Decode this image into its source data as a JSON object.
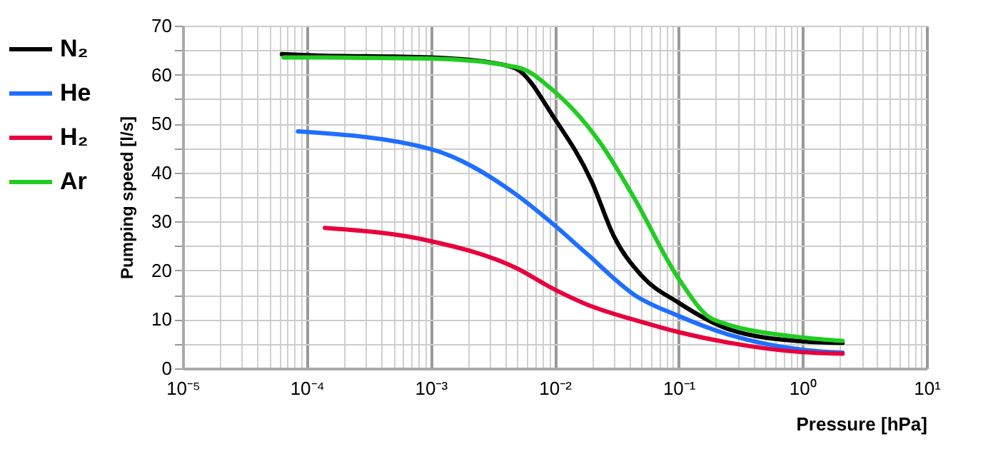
{
  "chart_data": {
    "type": "line",
    "xlabel": "Pressure [hPa]",
    "ylabel": "Pumping speed [l/s]",
    "log": "x",
    "xlim": [
      1e-05,
      10
    ],
    "ylim": [
      0,
      70
    ],
    "xticks": [
      {
        "value": 1e-05,
        "label": "10⁻⁵"
      },
      {
        "value": 2e-05,
        "label": null
      },
      {
        "value": 3e-05,
        "label": null
      },
      {
        "value": 4e-05,
        "label": null
      },
      {
        "value": 5e-05,
        "label": null
      },
      {
        "value": 6e-05,
        "label": null
      },
      {
        "value": 7e-05,
        "label": null
      },
      {
        "value": 8e-05,
        "label": null
      },
      {
        "value": 9e-05,
        "label": null
      },
      {
        "value": 0.0001,
        "label": "10⁻⁴"
      },
      {
        "value": 0.0002,
        "label": null
      },
      {
        "value": 0.0003,
        "label": null
      },
      {
        "value": 0.0004,
        "label": null
      },
      {
        "value": 0.0005,
        "label": null
      },
      {
        "value": 0.0006,
        "label": null
      },
      {
        "value": 0.0007,
        "label": null
      },
      {
        "value": 0.0008,
        "label": null
      },
      {
        "value": 0.0009,
        "label": null
      },
      {
        "value": 0.001,
        "label": "10⁻³"
      },
      {
        "value": 0.002,
        "label": null
      },
      {
        "value": 0.003,
        "label": null
      },
      {
        "value": 0.004,
        "label": null
      },
      {
        "value": 0.005,
        "label": null
      },
      {
        "value": 0.006,
        "label": null
      },
      {
        "value": 0.007,
        "label": null
      },
      {
        "value": 0.008,
        "label": null
      },
      {
        "value": 0.009,
        "label": null
      },
      {
        "value": 0.01,
        "label": "10⁻²"
      },
      {
        "value": 0.02,
        "label": null
      },
      {
        "value": 0.03,
        "label": null
      },
      {
        "value": 0.04,
        "label": null
      },
      {
        "value": 0.05,
        "label": null
      },
      {
        "value": 0.06,
        "label": null
      },
      {
        "value": 0.07,
        "label": null
      },
      {
        "value": 0.08,
        "label": null
      },
      {
        "value": 0.09,
        "label": null
      },
      {
        "value": 0.1,
        "label": "10⁻¹"
      },
      {
        "value": 0.2,
        "label": null
      },
      {
        "value": 0.3,
        "label": null
      },
      {
        "value": 0.4,
        "label": null
      },
      {
        "value": 0.5,
        "label": null
      },
      {
        "value": 0.6,
        "label": null
      },
      {
        "value": 0.7,
        "label": null
      },
      {
        "value": 0.8,
        "label": null
      },
      {
        "value": 0.9,
        "label": null
      },
      {
        "value": 1,
        "label": "10⁰"
      },
      {
        "value": 2,
        "label": null
      },
      {
        "value": 3,
        "label": null
      },
      {
        "value": 4,
        "label": null
      },
      {
        "value": 5,
        "label": null
      },
      {
        "value": 6,
        "label": null
      },
      {
        "value": 7,
        "label": null
      },
      {
        "value": 8,
        "label": null
      },
      {
        "value": 9,
        "label": null
      },
      {
        "value": 10,
        "label": "10¹"
      }
    ],
    "yticks": [
      0,
      {
        "value": 5,
        "label": null
      },
      10,
      {
        "value": 15,
        "label": null
      },
      20,
      {
        "value": 25,
        "label": null
      },
      30,
      {
        "value": 35,
        "label": null
      },
      40,
      {
        "value": 45,
        "label": null
      },
      50,
      {
        "value": 55,
        "label": null
      },
      60,
      {
        "value": 65,
        "label": null
      },
      70
    ],
    "grid": true,
    "legend": "left",
    "line_style": "solid",
    "marker": "none",
    "series": [
      {
        "name": "N₂",
        "color": "#000000",
        "x": [
          6.3e-05,
          0.0001,
          0.001,
          0.003,
          0.0049,
          0.01,
          0.02,
          0.03,
          0.05,
          0.1,
          0.26,
          1,
          2.1
        ],
        "values": [
          64.2,
          64,
          63.5,
          62.5,
          61.2,
          51,
          38,
          27,
          19,
          13.4,
          7.9,
          5.5,
          5.2
        ]
      },
      {
        "name": "He",
        "color": "#1f6fff",
        "x": [
          8.5e-05,
          0.001,
          0.0049,
          0.01,
          0.018,
          0.044,
          0.1,
          0.26,
          1,
          2.1
        ],
        "values": [
          48.4,
          44.8,
          35.5,
          29.2,
          23.5,
          15,
          10.7,
          6.8,
          3.8,
          3.2
        ]
      },
      {
        "name": "H₂",
        "color": "#e8003c",
        "x": [
          0.00014,
          0.001,
          0.0049,
          0.01,
          0.018,
          0.05,
          0.1,
          0.26,
          1,
          2.1
        ],
        "values": [
          28.7,
          26,
          20.5,
          16.1,
          13.1,
          9.5,
          7.4,
          5.2,
          3.3,
          3.0
        ]
      },
      {
        "name": "Ar",
        "color": "#22cc22",
        "x": [
          6.5e-05,
          0.0001,
          0.001,
          0.005,
          0.01,
          0.024,
          0.044,
          0.1,
          0.19,
          1,
          2.1
        ],
        "values": [
          63.5,
          63.5,
          63.3,
          61.5,
          56.5,
          45.6,
          34.7,
          18.3,
          10,
          6.3,
          5.6
        ]
      }
    ]
  }
}
